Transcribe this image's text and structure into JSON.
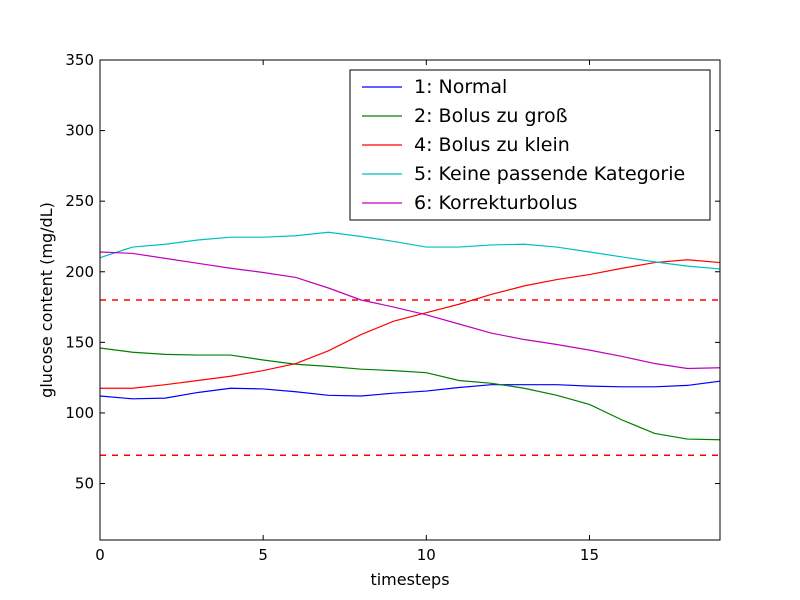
{
  "chart_data": {
    "type": "line",
    "xlabel": "timesteps",
    "ylabel": "glucose content (mg/dL)",
    "xlim": [
      0,
      19
    ],
    "ylim": [
      10,
      350
    ],
    "xticks": [
      0,
      5,
      10,
      15
    ],
    "yticks": [
      50,
      100,
      150,
      200,
      250,
      300,
      350
    ],
    "grid": false,
    "legend_position": "top-right",
    "x": [
      0,
      1,
      2,
      3,
      4,
      5,
      6,
      7,
      8,
      9,
      10,
      11,
      12,
      13,
      14,
      15,
      16,
      17,
      18,
      19
    ],
    "series": [
      {
        "name": "1: Normal",
        "color": "#0000ff",
        "values": [
          112,
          110,
          110.5,
          114.5,
          117.5,
          117,
          115,
          112.5,
          112,
          114,
          115.5,
          118,
          120,
          120,
          120,
          119,
          118.5,
          118.5,
          119.5,
          122.5
        ]
      },
      {
        "name": "2: Bolus zu groß",
        "color": "#008000",
        "values": [
          146,
          143,
          141.5,
          141,
          141,
          137.5,
          134.5,
          133,
          131,
          130,
          128.5,
          123,
          121,
          117.5,
          112.5,
          106,
          95,
          85.5,
          81.5,
          81
        ]
      },
      {
        "name": "4: Bolus zu klein",
        "color": "#ff0000",
        "values": [
          117.5,
          117.5,
          120,
          123,
          126,
          130,
          135,
          144,
          155.5,
          165,
          171,
          177,
          184,
          190,
          194.5,
          198,
          202.5,
          206.5,
          208.5,
          206.5
        ]
      },
      {
        "name": "5: Keine passende Kategorie",
        "color": "#00bfbf",
        "values": [
          210,
          217.5,
          219.5,
          222.5,
          224.5,
          224.5,
          225.5,
          228,
          225,
          221.5,
          217.5,
          217.5,
          219,
          219.5,
          217.5,
          214,
          210.5,
          207,
          204,
          202
        ]
      },
      {
        "name": "6: Korrekturbolus",
        "color": "#bf00bf",
        "values": [
          214,
          213,
          209.5,
          206,
          202.5,
          199.5,
          196,
          188.5,
          180,
          175,
          169.5,
          163,
          156.5,
          152,
          148.5,
          144.5,
          140,
          135,
          131.5,
          132
        ]
      }
    ],
    "reference_lines": [
      {
        "y": 180,
        "color": "#ff0000",
        "style": "dashed"
      },
      {
        "y": 70,
        "color": "#ff0000",
        "style": "dashed"
      }
    ]
  }
}
